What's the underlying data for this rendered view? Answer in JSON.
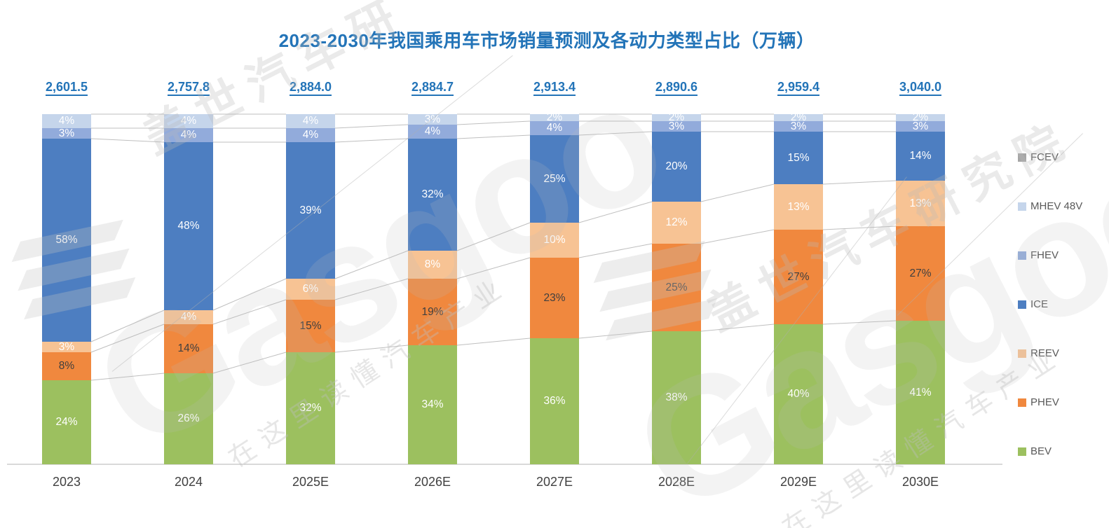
{
  "title": "2023-2030年我国乘用车市场销量预测及各动力类型占比（万辆）",
  "watermark": {
    "brand": "Gasgoo",
    "org": "盖世汽车研究院",
    "org_partial": "盖世汽车研",
    "slogan": "在这里读懂汽车产业"
  },
  "legend": {
    "position": "right",
    "items": [
      {
        "label": "FCEV",
        "color": "#A6A6A6"
      },
      {
        "label": "MHEV 48V",
        "color": "#C5D5EB"
      },
      {
        "label": "FHEV",
        "color": "#92ABDB"
      },
      {
        "label": "ICE",
        "color": "#4D7EC1"
      },
      {
        "label": "REEV",
        "color": "#F7C394"
      },
      {
        "label": "PHEV",
        "color": "#F0883E"
      },
      {
        "label": "BEV",
        "color": "#9CC05F"
      }
    ]
  },
  "chart_data": {
    "type": "bar",
    "subtype": "stacked-100-percent",
    "title": "2023-2030年我国乘用车市场销量预测及各动力类型占比（万辆）",
    "xlabel": "",
    "ylabel": "",
    "grid": false,
    "ylim": [
      0,
      100
    ],
    "unit": "万辆 (totals), % (segments)",
    "categories": [
      "2023",
      "2024",
      "2025E",
      "2026E",
      "2027E",
      "2028E",
      "2029E",
      "2030E"
    ],
    "totals": [
      2601.5,
      2757.8,
      2884.0,
      2884.7,
      2913.4,
      2890.6,
      2959.4,
      3040.0
    ],
    "totals_display": [
      "2,601.5",
      "2,757.8",
      "2,884.0",
      "2,884.7",
      "2,913.4",
      "2,890.6",
      "2,959.4",
      "3,040.0"
    ],
    "stack_order_bottom_to_top": [
      "BEV",
      "PHEV",
      "REEV",
      "ICE",
      "FHEV",
      "MHEV 48V",
      "FCEV"
    ],
    "series": [
      {
        "name": "BEV",
        "color": "#9CC05F",
        "label_color": "#FFFFFF",
        "values": [
          24,
          26,
          32,
          34,
          36,
          38,
          40,
          41
        ]
      },
      {
        "name": "PHEV",
        "color": "#F0883E",
        "label_color": "#3F3F3F",
        "values": [
          8,
          14,
          15,
          19,
          23,
          25,
          27,
          27
        ]
      },
      {
        "name": "REEV",
        "color": "#F7C394",
        "label_color": "#FFFFFF",
        "values": [
          3,
          4,
          6,
          8,
          10,
          12,
          13,
          13
        ]
      },
      {
        "name": "ICE",
        "color": "#4D7EC1",
        "label_color": "#FFFFFF",
        "values": [
          58,
          48,
          39,
          32,
          25,
          20,
          15,
          14
        ]
      },
      {
        "name": "FHEV",
        "color": "#92ABDB",
        "label_color": "#FFFFFF",
        "values": [
          3,
          4,
          4,
          4,
          4,
          3,
          3,
          3
        ]
      },
      {
        "name": "MHEV 48V",
        "color": "#C5D5EB",
        "label_color": "#FFFFFF",
        "values": [
          4,
          4,
          4,
          3,
          2,
          2,
          2,
          2
        ]
      },
      {
        "name": "FCEV",
        "color": "#A6A6A6",
        "label_color": "#FFFFFF",
        "values": [
          0,
          0,
          0,
          0,
          0,
          0,
          0,
          0
        ]
      }
    ],
    "connector_lines": true,
    "label_format": "{value}%"
  }
}
